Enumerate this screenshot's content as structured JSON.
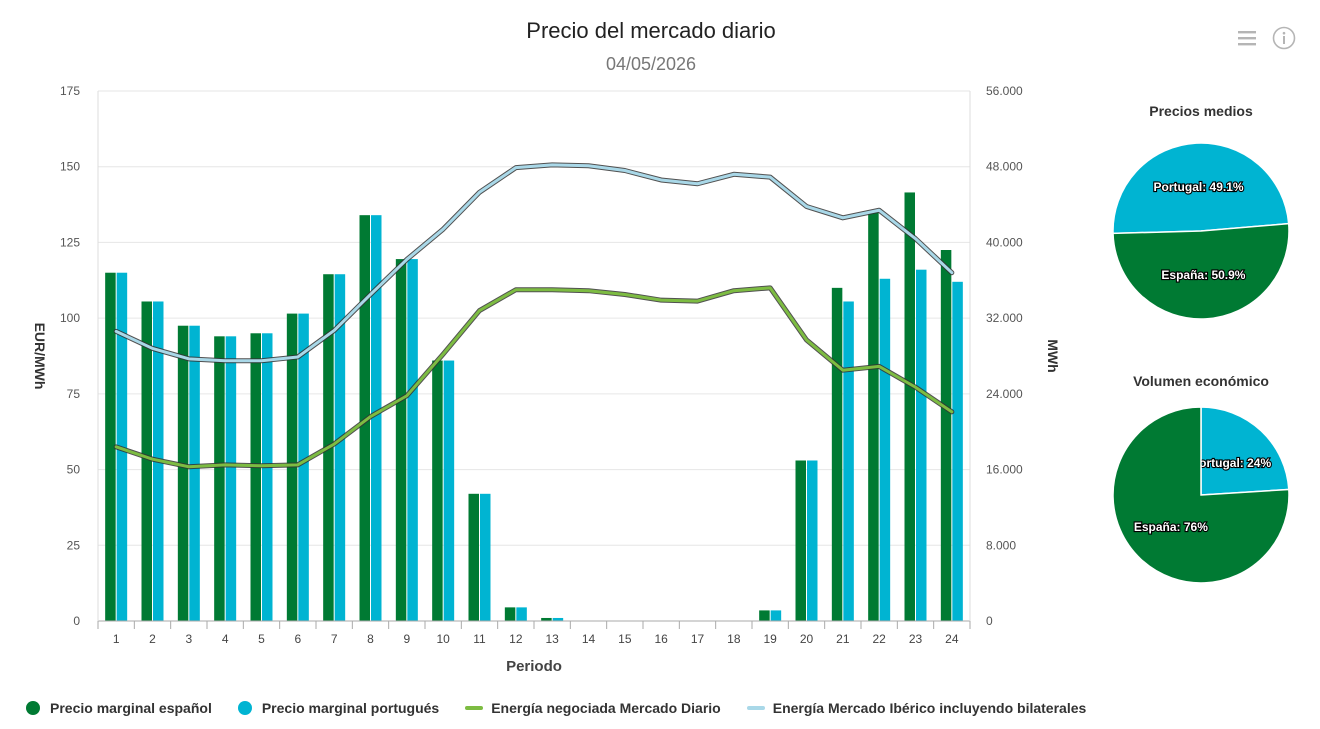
{
  "header": {
    "title": "Precio del mercado diario",
    "subtitle": "04/05/2026"
  },
  "icons": {
    "menu": "menu-icon",
    "info": "info-icon"
  },
  "chart_data": [
    {
      "type": "bar",
      "categories": [
        "1",
        "2",
        "3",
        "4",
        "5",
        "6",
        "7",
        "8",
        "9",
        "10",
        "11",
        "12",
        "13",
        "14",
        "15",
        "16",
        "17",
        "18",
        "19",
        "20",
        "21",
        "22",
        "23",
        "24"
      ],
      "xlabel": "Periodo",
      "ylabel": "EUR/MWh",
      "ylim": [
        0,
        175
      ],
      "yticks": [
        "0",
        "25",
        "50",
        "75",
        "100",
        "125",
        "150",
        "175"
      ],
      "y2label": "MWh",
      "y2lim": [
        0,
        56000
      ],
      "y2ticks": [
        "0",
        "8.000",
        "16.000",
        "24.000",
        "32.000",
        "40.000",
        "48.000",
        "56.000"
      ],
      "grid": true,
      "legend_position": "bottom",
      "series": [
        {
          "name": "Precio marginal español",
          "type": "bar",
          "axis": "left",
          "color": "#007a33",
          "values": [
            115,
            105.5,
            97.5,
            94,
            95,
            101.5,
            114.5,
            134,
            119.5,
            86,
            42,
            4.5,
            1,
            0,
            0,
            0,
            0,
            0,
            3.5,
            53,
            110,
            135,
            141.5,
            122.5
          ]
        },
        {
          "name": "Precio marginal portugués",
          "type": "bar",
          "axis": "left",
          "color": "#00b4d2",
          "values": [
            115,
            105.5,
            97.5,
            94,
            95,
            101.5,
            114.5,
            134,
            119.5,
            86,
            42,
            4.5,
            1,
            0,
            0,
            0,
            0,
            0,
            3.5,
            53,
            105.5,
            113,
            116,
            112
          ]
        },
        {
          "name": "Energía negociada Mercado Diario",
          "type": "line",
          "axis": "right",
          "color": "#7dbc42",
          "values": [
            18400,
            17100,
            16300,
            16500,
            16400,
            16500,
            18700,
            21600,
            23800,
            28200,
            32800,
            35000,
            35000,
            34900,
            34500,
            33900,
            33800,
            34900,
            35200,
            29700,
            26500,
            26900,
            24700,
            22100
          ]
        },
        {
          "name": "Energía Mercado Ibérico incluyendo bilaterales",
          "type": "line",
          "axis": "right",
          "color": "#a9d8e8",
          "values": [
            30600,
            28800,
            27700,
            27500,
            27500,
            27900,
            30700,
            34500,
            38200,
            41400,
            45300,
            47900,
            48200,
            48100,
            47600,
            46600,
            46200,
            47200,
            46900,
            43800,
            42600,
            43400,
            40400,
            36800
          ]
        }
      ]
    },
    {
      "type": "pie",
      "title": "Precios medios",
      "slices": [
        {
          "label": "Portugal",
          "value": 49.1,
          "display": "Portugal: 49.1%",
          "color": "#00b4d2"
        },
        {
          "label": "España",
          "value": 50.9,
          "display": "España: 50.9%",
          "color": "#007a33"
        }
      ]
    },
    {
      "type": "pie",
      "title": "Volumen económico",
      "slices": [
        {
          "label": "Portugal",
          "value": 24,
          "display": "Portugal: 24%",
          "color": "#00b4d2"
        },
        {
          "label": "España",
          "value": 76,
          "display": "España: 76%",
          "color": "#007a33"
        }
      ]
    }
  ]
}
